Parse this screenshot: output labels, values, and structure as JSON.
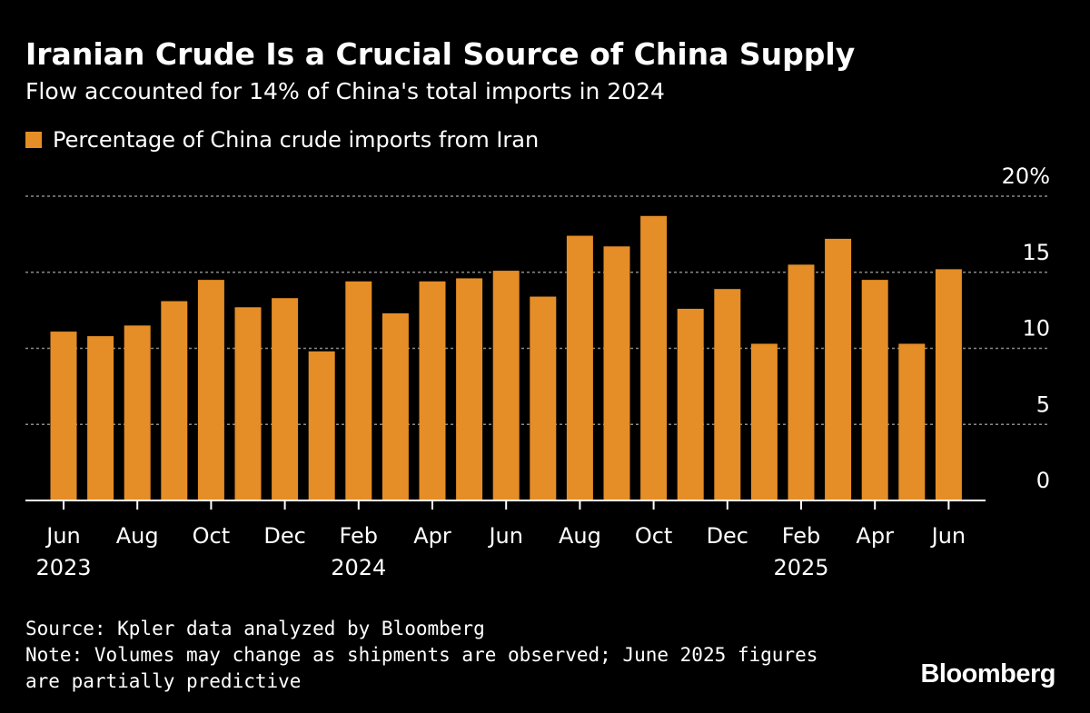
{
  "title": "Iranian Crude Is a Crucial Source of China Supply",
  "subtitle": "Flow accounted for 14% of China's total imports in 2024",
  "legend": {
    "label": "Percentage of China crude imports from Iran",
    "color": "#E58D26"
  },
  "source": "Source: Kpler data analyzed by Bloomberg",
  "note_line1": "Note: Volumes may change as shipments are observed; June 2025 figures",
  "note_line2": "are partially predictive",
  "brand": "Bloomberg",
  "chart_data": {
    "type": "bar",
    "categories": [
      "Jun 2023",
      "Jul 2023",
      "Aug 2023",
      "Sep 2023",
      "Oct 2023",
      "Nov 2023",
      "Dec 2023",
      "Jan 2024",
      "Feb 2024",
      "Mar 2024",
      "Apr 2024",
      "May 2024",
      "Jun 2024",
      "Jul 2024",
      "Aug 2024",
      "Sep 2024",
      "Oct 2024",
      "Nov 2024",
      "Dec 2024",
      "Jan 2025",
      "Feb 2025",
      "Mar 2025",
      "Apr 2025",
      "May 2025",
      "Jun 2025"
    ],
    "values": [
      11.1,
      10.8,
      11.5,
      13.1,
      14.5,
      12.7,
      13.3,
      9.8,
      14.4,
      12.3,
      14.4,
      14.6,
      15.1,
      13.4,
      17.4,
      16.7,
      18.7,
      12.6,
      13.9,
      10.3,
      15.5,
      17.2,
      14.5,
      10.3,
      15.2
    ],
    "ylim": [
      0,
      20
    ],
    "yticks": [
      "0",
      "5",
      "10",
      "15",
      "20%"
    ],
    "ytick_values": [
      0,
      5,
      10,
      15,
      20
    ],
    "xtick_labels": [
      {
        "index": 0,
        "month": "Jun",
        "year": "2023"
      },
      {
        "index": 2,
        "month": "Aug",
        "year": ""
      },
      {
        "index": 4,
        "month": "Oct",
        "year": ""
      },
      {
        "index": 6,
        "month": "Dec",
        "year": ""
      },
      {
        "index": 8,
        "month": "Feb",
        "year": "2024"
      },
      {
        "index": 10,
        "month": "Apr",
        "year": ""
      },
      {
        "index": 12,
        "month": "Jun",
        "year": ""
      },
      {
        "index": 14,
        "month": "Aug",
        "year": ""
      },
      {
        "index": 16,
        "month": "Oct",
        "year": ""
      },
      {
        "index": 18,
        "month": "Dec",
        "year": ""
      },
      {
        "index": 20,
        "month": "Feb",
        "year": "2025"
      },
      {
        "index": 22,
        "month": "Apr",
        "year": ""
      },
      {
        "index": 24,
        "month": "Jun",
        "year": ""
      }
    ],
    "grid": true,
    "y_axis_side": "right",
    "legend_position": "top-left",
    "bar_color": "#E58D26",
    "grid_color": "#8a8a8a"
  }
}
